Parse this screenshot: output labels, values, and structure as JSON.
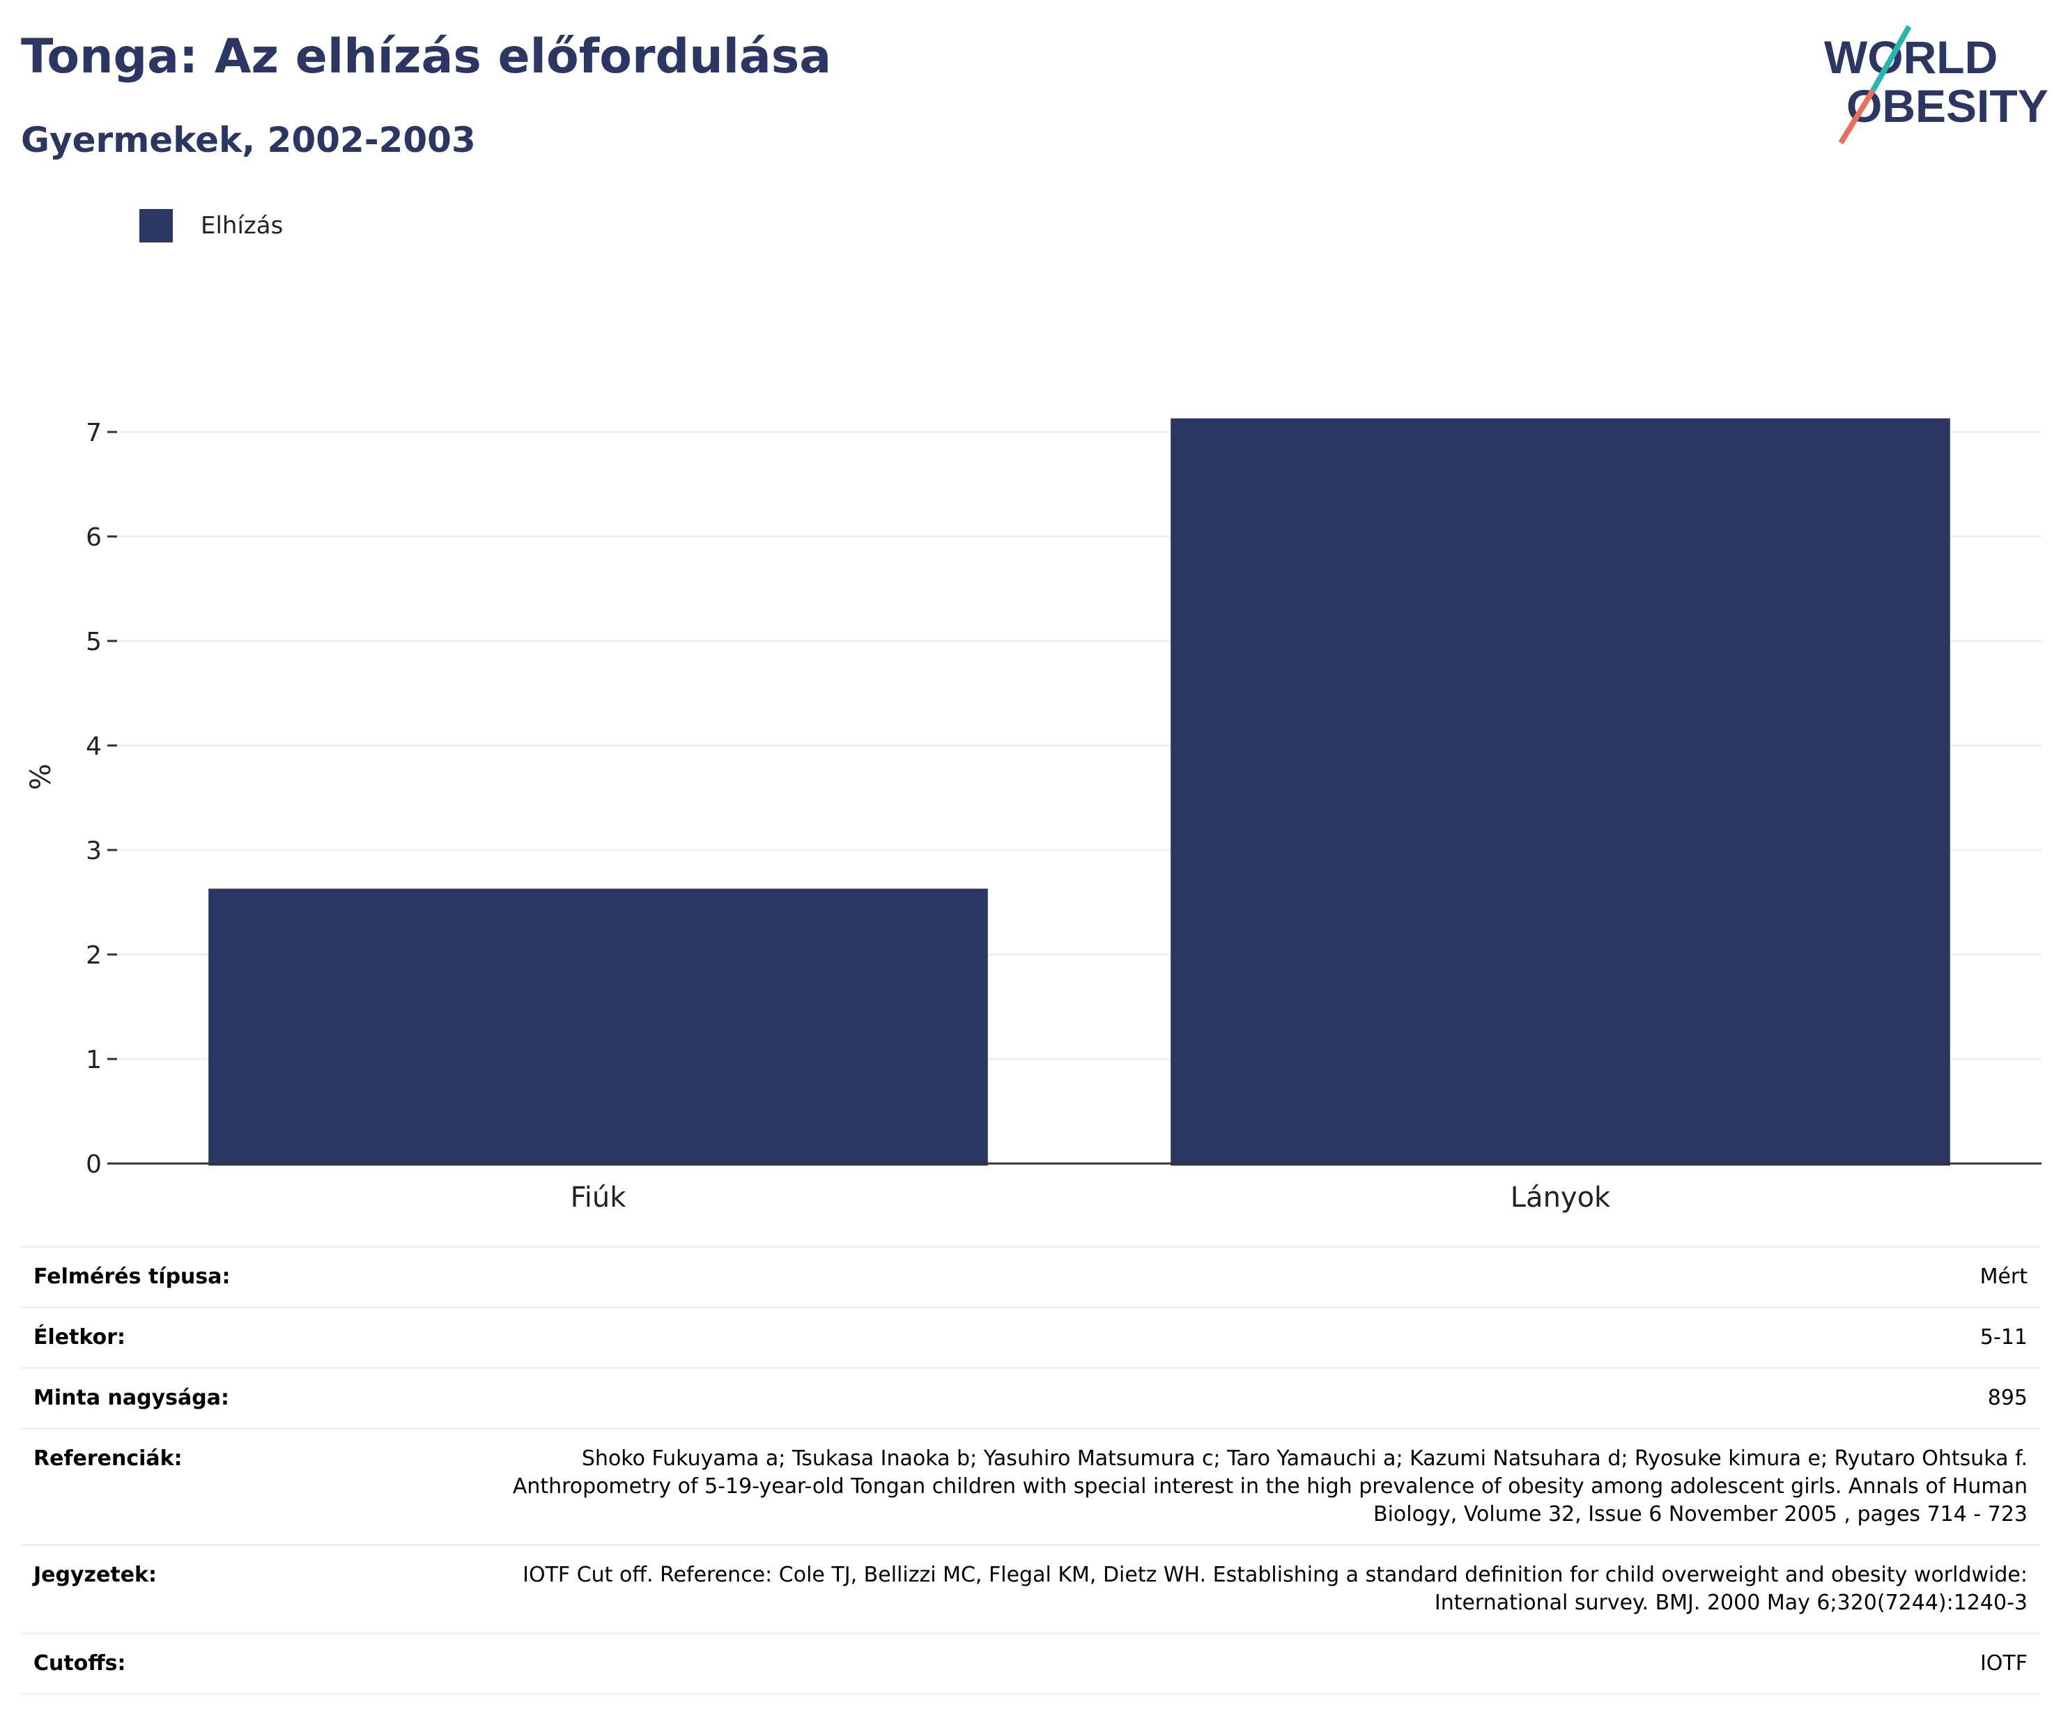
{
  "header": {
    "title": "Tonga: Az elhízás előfordulása",
    "subtitle": "Gyermekek, 2002-2003",
    "logo_line1": "WORLD",
    "logo_line2": "OBESITY"
  },
  "legend": {
    "label": "Elhízás",
    "color": "#2b3662"
  },
  "chart_data": {
    "type": "bar",
    "categories": [
      "Fiúk",
      "Lányok"
    ],
    "series": [
      {
        "name": "Elhízás",
        "values": [
          2.63,
          7.13
        ]
      }
    ],
    "title": "Tonga: Az elhízás előfordulása",
    "subtitle": "Gyermekek, 2002-2003",
    "xlabel": "",
    "ylabel": "%",
    "ylim": [
      0,
      7.4
    ],
    "yticks": [
      0,
      1,
      2,
      3,
      4,
      5,
      6,
      7
    ],
    "grid": true,
    "legend_position": "top-left",
    "bar_color": "#2b3662"
  },
  "info": [
    {
      "key": "Felmérés típusa:",
      "value": "Mért"
    },
    {
      "key": "Életkor:",
      "value": "5-11"
    },
    {
      "key": "Minta nagysága:",
      "value": "895"
    },
    {
      "key": "Referenciák:",
      "value": "Shoko Fukuyama a;  Tsukasa Inaoka b;  Yasuhiro Matsumura c;  Taro Yamauchi a;  Kazumi Natsuhara d;  Ryosuke kimura e; Ryutaro Ohtsuka f. Anthropometry of 5-19-year-old Tongan children with special interest in the high prevalence of obesity among adolescent girls. Annals of Human Biology, Volume 32, Issue 6 November 2005 , pages 714 - 723"
    },
    {
      "key": "Jegyzetek:",
      "value": "IOTF Cut off. Reference: Cole TJ, Bellizzi MC, Flegal KM, Dietz WH. Establishing a standard definition for child overweight and obesity worldwide: International survey. BMJ. 2000 May 6;320(7244):1240-3"
    },
    {
      "key": "Cutoffs:",
      "value": "IOTF"
    }
  ],
  "colors": {
    "brand_navy": "#2b3662",
    "logo_teal": "#2bb5b0",
    "logo_coral": "#e8705f"
  }
}
